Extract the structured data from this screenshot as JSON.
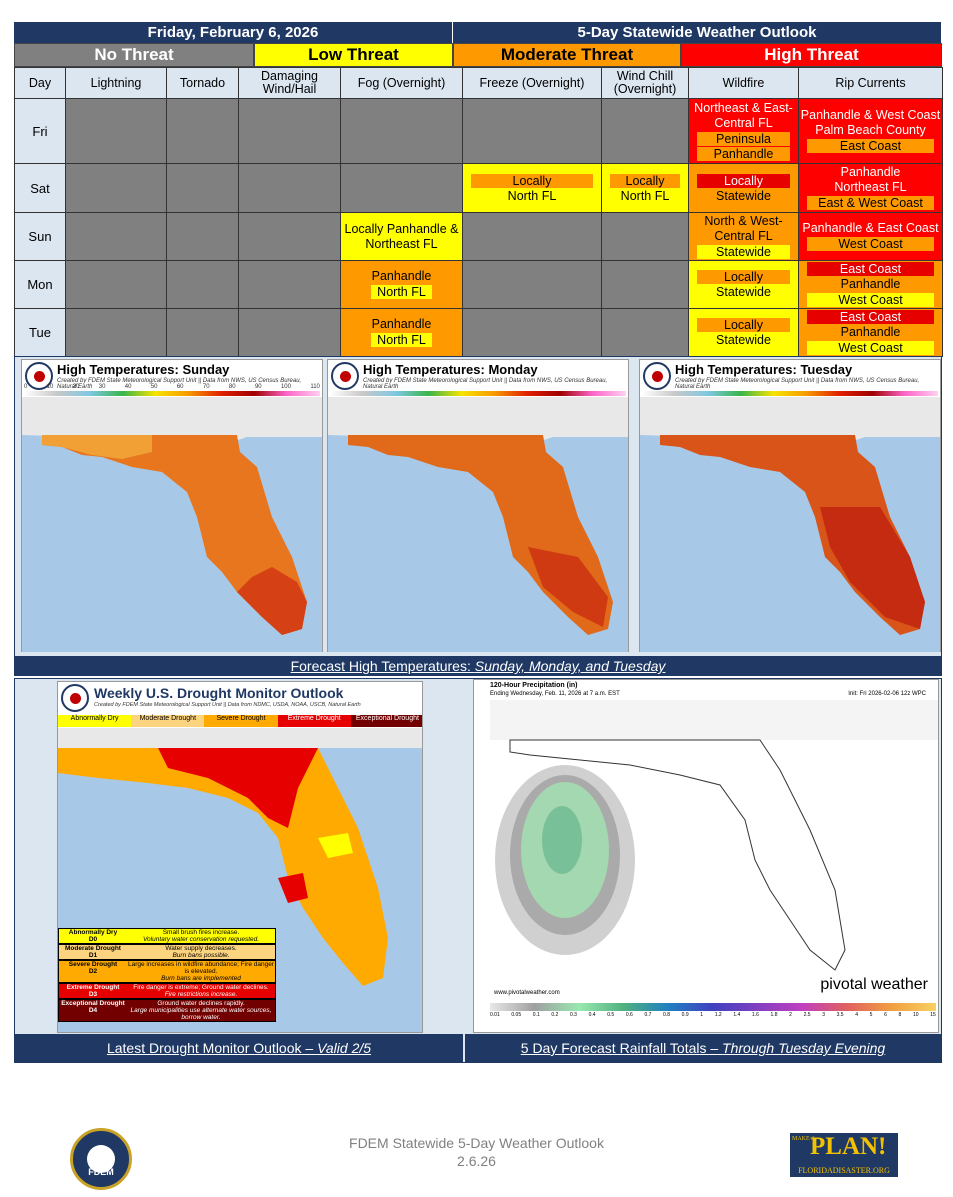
{
  "header": {
    "date": "Friday, February 6, 2026",
    "title": "5-Day Statewide Weather Outlook"
  },
  "legend": {
    "none": "No Threat",
    "low": "Low Threat",
    "moderate": "Moderate Threat",
    "high": "High Threat"
  },
  "columns": {
    "day": "Day",
    "lightning": "Lightning",
    "tornado": "Tornado",
    "wind": "Damaging Wind/Hail",
    "fog": "Fog (Overnight)",
    "freeze": "Freeze (Overnight)",
    "windchill": "Wind Chill (Overnight)",
    "wildfire": "Wildfire",
    "rip": "Rip Currents"
  },
  "rows": {
    "fri": {
      "day": "Fri",
      "wildfire": [
        "Northeast & East-Central FL",
        "Peninsula",
        "Panhandle"
      ],
      "rip": [
        "Panhandle & West Coast",
        "Palm Beach County",
        "East Coast"
      ]
    },
    "sat": {
      "day": "Sat",
      "freeze": [
        "Locally",
        "North FL"
      ],
      "windchill": [
        "Locally",
        "North FL"
      ],
      "wildfire": [
        "Locally",
        "Statewide"
      ],
      "rip": [
        "Panhandle",
        "Northeast FL",
        "East & West Coast"
      ]
    },
    "sun": {
      "day": "Sun",
      "fog": "Locally Panhandle & Northeast FL",
      "wildfire": [
        "North & West-Central FL",
        "Statewide"
      ],
      "rip": [
        "Panhandle & East Coast",
        "West Coast"
      ]
    },
    "mon": {
      "day": "Mon",
      "fog": [
        "Panhandle",
        "North FL"
      ],
      "wildfire": [
        "Locally",
        "Statewide"
      ],
      "rip": [
        "East Coast",
        "Panhandle",
        "West Coast"
      ]
    },
    "tue": {
      "day": "Tue",
      "fog": [
        "Panhandle",
        "North FL"
      ],
      "wildfire": [
        "Locally",
        "Statewide"
      ],
      "rip": [
        "East Coast",
        "Panhandle",
        "West Coast"
      ]
    }
  },
  "maps": {
    "sun_title": "High Temperatures: Sunday",
    "mon_title": "High Temperatures: Monday",
    "tue_title": "High Temperatures: Tuesday",
    "credit": "Created by FDEM State Meteorological Support Unit || Data from NWS, US Census Bureau, Natural Earth",
    "scale": [
      "0",
      "10",
      "20",
      "30",
      "40",
      "50",
      "60",
      "70",
      "80",
      "90",
      "100",
      "110"
    ],
    "caption_prefix": "Forecast High Temperatures: ",
    "caption_days": "Sunday, Monday, and Tuesday"
  },
  "drought": {
    "title": "Weekly U.S. Drought Monitor Outlook",
    "credit": "Created by FDEM State Meteorological Support Unit || Data from NDMC, USDA, NOAA, USCB, Natural Earth",
    "cats": [
      "Abnormally Dry",
      "Moderate Drought",
      "Severe Drought",
      "Extreme Drought",
      "Exceptional Drought"
    ],
    "table": [
      {
        "cat": "Abnormally Dry",
        "code": "D0",
        "impact": "Small brush fires increase.",
        "note": "Voluntary water conservation requested."
      },
      {
        "cat": "Moderate Drought",
        "code": "D1",
        "impact": "Water supply decreases.",
        "note": "Burn bans possible."
      },
      {
        "cat": "Severe Drought",
        "code": "D2",
        "impact": "Large increases in wildfire abundance; Fire danger is elevated.",
        "note": "Burn bans are implemented"
      },
      {
        "cat": "Extreme Drought",
        "code": "D3",
        "impact": "Fire danger is extreme; Ground water declines.",
        "note": "Fire restrictions increase."
      },
      {
        "cat": "Exceptional Drought",
        "code": "D4",
        "impact": "Ground water declines rapidly.",
        "note": "Large municipalities use alternate water sources, borrow water."
      }
    ],
    "caption_prefix": "Latest Drought Monitor Outlook – ",
    "caption_valid": "Valid 2/5"
  },
  "rain": {
    "title": "120-Hour Precipitation (in)",
    "ending": "Ending Wednesday, Feb. 11, 2026 at 7 a.m. EST",
    "init": "Init: Fri 2026-02-06 12z WPC",
    "brand": "pivotal weather",
    "url": "www.pivotalweather.com",
    "scale": [
      "0.01",
      "0.05",
      "0.1",
      "0.2",
      "0.3",
      "0.4",
      "0.5",
      "0.6",
      "0.7",
      "0.8",
      "0.9",
      "1",
      "1.2",
      "1.4",
      "1.6",
      "1.8",
      "2",
      "2.5",
      "3",
      "3.5",
      "4",
      "5",
      "6",
      "8",
      "10",
      "15"
    ],
    "caption_prefix": "5 Day Forecast Rainfall Totals – ",
    "caption_valid": "Through Tuesday Evening"
  },
  "footer": {
    "line1": "FDEM Statewide 5-Day Weather Outlook",
    "line2": "2.6.26",
    "logo": "FDEM",
    "plan": "PLAN!",
    "make": "MAKE A",
    "site": "FLORIDADISASTER.ORG"
  },
  "colors": {
    "navy": "#1f3864",
    "gray": "#808080",
    "yellow": "#ffff00",
    "orange": "#ff9900",
    "red": "#ff0000"
  }
}
